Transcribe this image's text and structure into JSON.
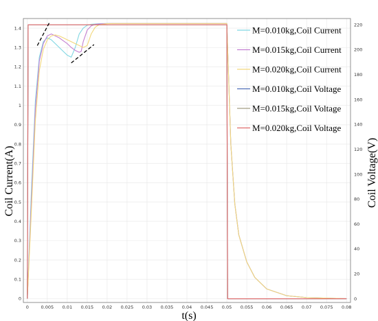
{
  "chart_data": {
    "type": "line",
    "xlabel": "t(s)",
    "ylabel_left": "Coil Current(A)",
    "ylabel_right": "Coil Voltage(V)",
    "xlim": [
      -0.001,
      0.081
    ],
    "ylim_left": [
      -0.02,
      1.45
    ],
    "ylim_right": [
      -3,
      225
    ],
    "x_ticks": [
      "0",
      "0.005",
      "0.01",
      "0.015",
      "0.02",
      "0.025",
      "0.03",
      "0.035",
      "0.04",
      "0.045",
      "0.05",
      "0.055",
      "0.06",
      "0.065",
      "0.07",
      "0.075",
      "0.08"
    ],
    "y_left_ticks": [
      "0",
      "0.1",
      "0.2",
      "0.3",
      "0.4",
      "0.5",
      "0.6",
      "0.7",
      "0.8",
      "0.9",
      "1",
      "1.1",
      "1.2",
      "1.3",
      "1.4"
    ],
    "y_right_ticks": [
      "0",
      "20",
      "40",
      "60",
      "80",
      "100",
      "120",
      "140",
      "160",
      "180",
      "200",
      "220"
    ],
    "grid": true,
    "legend_position": "top-right",
    "series": [
      {
        "name": "M=0.010kg,Coil Current",
        "axis": "left",
        "color": "#7fd6e2",
        "points": [
          [
            0,
            0
          ],
          [
            0.001,
            0.55
          ],
          [
            0.002,
            1.02
          ],
          [
            0.003,
            1.25
          ],
          [
            0.004,
            1.33
          ],
          [
            0.005,
            1.35
          ],
          [
            0.006,
            1.34
          ],
          [
            0.007,
            1.32
          ],
          [
            0.008,
            1.3
          ],
          [
            0.009,
            1.28
          ],
          [
            0.01,
            1.26
          ],
          [
            0.011,
            1.25
          ],
          [
            0.012,
            1.3
          ],
          [
            0.013,
            1.37
          ],
          [
            0.014,
            1.4
          ],
          [
            0.015,
            1.415
          ],
          [
            0.016,
            1.42
          ],
          [
            0.018,
            1.423
          ],
          [
            0.02,
            1.424
          ],
          [
            0.0495,
            1.424
          ],
          [
            0.05,
            1.424
          ],
          [
            0.051,
            0.8
          ],
          [
            0.052,
            0.49
          ],
          [
            0.053,
            0.33
          ],
          [
            0.055,
            0.19
          ],
          [
            0.057,
            0.11
          ],
          [
            0.06,
            0.05
          ],
          [
            0.065,
            0.015
          ],
          [
            0.07,
            0.005
          ],
          [
            0.08,
            0
          ]
        ]
      },
      {
        "name": "M=0.015kg,Coil Current",
        "axis": "left",
        "color": "#c37fd1",
        "points": [
          [
            0,
            0
          ],
          [
            0.001,
            0.5
          ],
          [
            0.002,
            0.98
          ],
          [
            0.003,
            1.23
          ],
          [
            0.004,
            1.32
          ],
          [
            0.005,
            1.36
          ],
          [
            0.006,
            1.37
          ],
          [
            0.007,
            1.36
          ],
          [
            0.008,
            1.35
          ],
          [
            0.009,
            1.335
          ],
          [
            0.01,
            1.32
          ],
          [
            0.011,
            1.3
          ],
          [
            0.012,
            1.285
          ],
          [
            0.013,
            1.275
          ],
          [
            0.0135,
            1.28
          ],
          [
            0.014,
            1.33
          ],
          [
            0.015,
            1.39
          ],
          [
            0.016,
            1.412
          ],
          [
            0.017,
            1.42
          ],
          [
            0.019,
            1.423
          ],
          [
            0.021,
            1.424
          ],
          [
            0.0495,
            1.424
          ],
          [
            0.05,
            1.424
          ],
          [
            0.051,
            0.8
          ],
          [
            0.052,
            0.49
          ],
          [
            0.053,
            0.33
          ],
          [
            0.055,
            0.19
          ],
          [
            0.057,
            0.11
          ],
          [
            0.06,
            0.05
          ],
          [
            0.065,
            0.015
          ],
          [
            0.07,
            0.005
          ],
          [
            0.08,
            0
          ]
        ]
      },
      {
        "name": "M=0.020kg,Coil Current",
        "axis": "left",
        "color": "#f2d77a",
        "points": [
          [
            0,
            0
          ],
          [
            0.001,
            0.45
          ],
          [
            0.002,
            0.92
          ],
          [
            0.003,
            1.18
          ],
          [
            0.004,
            1.29
          ],
          [
            0.005,
            1.34
          ],
          [
            0.006,
            1.36
          ],
          [
            0.007,
            1.365
          ],
          [
            0.008,
            1.36
          ],
          [
            0.009,
            1.35
          ],
          [
            0.01,
            1.34
          ],
          [
            0.011,
            1.33
          ],
          [
            0.012,
            1.32
          ],
          [
            0.013,
            1.31
          ],
          [
            0.014,
            1.3
          ],
          [
            0.015,
            1.31
          ],
          [
            0.016,
            1.37
          ],
          [
            0.017,
            1.405
          ],
          [
            0.018,
            1.418
          ],
          [
            0.02,
            1.423
          ],
          [
            0.022,
            1.424
          ],
          [
            0.0495,
            1.424
          ],
          [
            0.05,
            1.424
          ],
          [
            0.051,
            0.8
          ],
          [
            0.052,
            0.49
          ],
          [
            0.053,
            0.33
          ],
          [
            0.055,
            0.19
          ],
          [
            0.057,
            0.11
          ],
          [
            0.06,
            0.05
          ],
          [
            0.065,
            0.015
          ],
          [
            0.07,
            0.005
          ],
          [
            0.08,
            0
          ]
        ]
      },
      {
        "name": "M=0.010kg,Coil Voltage",
        "axis": "right",
        "color": "#4f6fb8",
        "points": [
          [
            0,
            0
          ],
          [
            0.0002,
            220
          ],
          [
            0.05,
            220
          ],
          [
            0.0502,
            0
          ],
          [
            0.08,
            0
          ]
        ]
      },
      {
        "name": "M=0.015kg,Coil Voltage",
        "axis": "right",
        "color": "#a39e84",
        "points": [
          [
            0,
            0
          ],
          [
            0.0002,
            220
          ],
          [
            0.05,
            220
          ],
          [
            0.0502,
            0
          ],
          [
            0.08,
            0
          ]
        ]
      },
      {
        "name": "M=0.020kg,Coil Voltage",
        "axis": "right",
        "color": "#e06b6b",
        "points": [
          [
            0,
            0
          ],
          [
            0.0002,
            220
          ],
          [
            0.05,
            220
          ],
          [
            0.0502,
            0
          ],
          [
            0.08,
            0
          ]
        ]
      }
    ],
    "annotations": [
      {
        "type": "dashed-line",
        "points": [
          [
            0.0025,
            1.31
          ],
          [
            0.0055,
            1.428
          ]
        ]
      },
      {
        "type": "dashed-line",
        "points": [
          [
            0.011,
            1.22
          ],
          [
            0.0167,
            1.315
          ]
        ]
      }
    ]
  }
}
